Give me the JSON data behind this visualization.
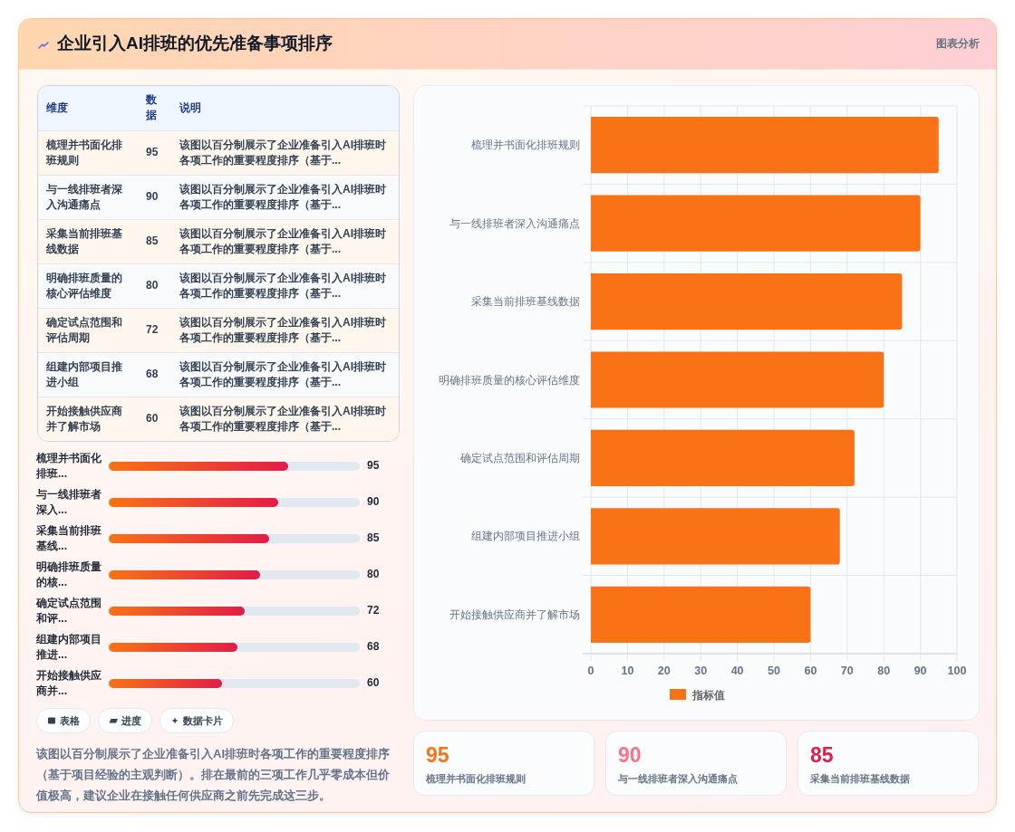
{
  "chart_data": [
    {
      "type": "other",
      "title": "企业引入AI排班的优先准备事项排序",
      "subtitle": "图表分析",
      "categories": [
        "梳理并书面化排班规则",
        "与一线排班者深入沟通痛点",
        "采集当前排班基线数据",
        "明确排班质量的核心评估维度",
        "确定试点范围和评估周期",
        "组建内部项目推进小组",
        "开始接触供应商并了解市场"
      ],
      "values": [
        95,
        90,
        85,
        80,
        72,
        68,
        60
      ],
      "data_labels": true,
      "annotations": [
        "维度",
        "数据",
        "说明",
        "该图以百分制展示了企业准备引入AI排班时各项工作的重要程度排序（基于...",
        "该图以百分制展示了企业准备引入AI排班时各项工作的重要程度排序（基于...",
        "该图以百分制展示了企业准备引入AI排班时各项工作的重要程度排序（基于...",
        "该图以百分制展示了企业准备引入AI排班时各项工作的重要程度排序（基于...",
        "该图以百分制展示了企业准备引入AI排班时各项工作的重要程度排序（基于...",
        "该图以百分制展示了企业准备引入AI排班时各项工作的重要程度排序（基于...",
        "该图以百分制展示了企业准备引入AI排班时各项工作的重要程度排序（基于..."
      ]
    },
    {
      "type": "bar",
      "orientation": "horizontal",
      "categories": [
        "梳理并书面化排班...",
        "与一线排班者深入...",
        "采集当前排班基线...",
        "明确排班质量的核...",
        "确定试点范围和评...",
        "组建内部项目推进...",
        "开始接触供应商并..."
      ],
      "values": [
        95,
        90,
        85,
        80,
        72,
        68,
        60
      ],
      "color": "#f97316",
      "xlim": [
        0,
        133
      ],
      "tick_labels": false,
      "data_labels": true,
      "annotations": [
        "表格",
        "进度",
        "数据卡片",
        "该图以百分制展示了企业准备引入AI排班时各项工作的重要程度排序（基于项目经验的主观判断）。排在最前的三项工作几乎零成本但价值极高，建议企业在接触任何供应商之前先完成这三步。"
      ]
    },
    {
      "type": "bar",
      "orientation": "horizontal",
      "categories": [
        "梳理并书面化排班规则",
        "与一线排班者深入沟通痛点",
        "采集当前排班基线数据",
        "明确排班质量的核心评估维度",
        "确定试点范围和评估周期",
        "组建内部项目推进小组",
        "开始接触供应商并了解市场"
      ],
      "series": [
        {
          "name": "指标值",
          "color": "#f97316",
          "values": [
            95,
            90,
            85,
            80,
            72,
            68,
            60
          ]
        }
      ],
      "xlim": [
        0,
        100
      ],
      "xticks": [
        0,
        10,
        20,
        30,
        40,
        50,
        60,
        70,
        80,
        90,
        100
      ],
      "grid": true,
      "legend": "bottom"
    },
    {
      "type": "other",
      "categories": [
        "梳理并书面化排班规则",
        "与一线排班者深入沟通痛点",
        "采集当前排班基线数据"
      ],
      "values": [
        95,
        90,
        85
      ],
      "data_labels": true
    }
  ]
}
